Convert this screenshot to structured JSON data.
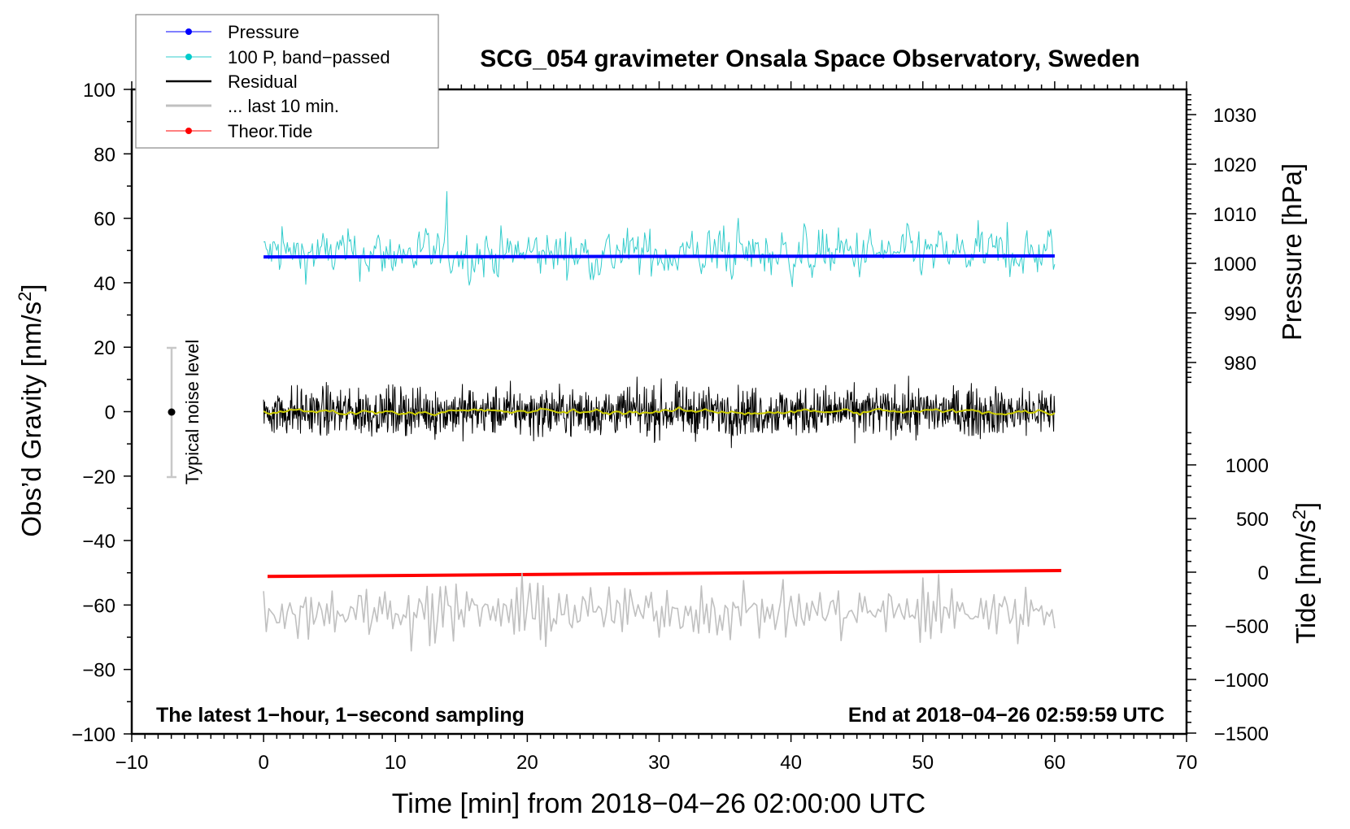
{
  "chart_data": {
    "type": "line",
    "title": "SCG_054 gravimeter Onsala Space Observatory, Sweden",
    "xlabel": "Time [min] from 2018−04−26 02:00:00 UTC",
    "ylabel_left": "Obs’d Gravity [nm/s",
    "ylabel_left_sup": "2",
    "ylabel_left_end": "]",
    "ylabel_right_pressure": "Pressure [hPa]",
    "ylabel_right_tide": "Tide [nm/s",
    "ylabel_right_tide_sup": "2",
    "ylabel_right_tide_end": "]",
    "xlim": [
      -10,
      70
    ],
    "ylim": [
      -100,
      100
    ],
    "pressure_lim": [
      975,
      1035
    ],
    "tide_lim": [
      -1500,
      1300
    ],
    "x_ticks": [
      "−10",
      "0",
      "10",
      "20",
      "30",
      "40",
      "50",
      "60",
      "70"
    ],
    "x_tick_values": [
      -10,
      0,
      10,
      20,
      30,
      40,
      50,
      60,
      70
    ],
    "y_ticks": [
      "100",
      "80",
      "60",
      "40",
      "20",
      "0",
      "−20",
      "−40",
      "−60",
      "−80",
      "−100"
    ],
    "y_tick_values": [
      100,
      80,
      60,
      40,
      20,
      0,
      -20,
      -40,
      -60,
      -80,
      -100
    ],
    "pressure_ticks": [
      "1030",
      "1020",
      "1010",
      "1000",
      "990",
      "980"
    ],
    "pressure_tick_values": [
      1030,
      1020,
      1010,
      1000,
      990,
      980
    ],
    "tide_ticks": [
      "1000",
      "500",
      "0",
      "−500",
      "−1000",
      "−1500"
    ],
    "tide_tick_values": [
      1000,
      500,
      0,
      -500,
      -1000,
      -1500
    ],
    "legend": {
      "placement": "top-left",
      "entries": [
        "Pressure",
        "100 P, band−passed",
        "Residual",
        "... last 10 min.",
        "Theor.Tide"
      ]
    },
    "series": [
      {
        "name": "Pressure",
        "axis": "pressure",
        "color": "#0000ff",
        "x_range": [
          0,
          60
        ],
        "start": 1001.3,
        "end": 1001.5
      },
      {
        "name": "100 P, band−passed",
        "axis": "gravity",
        "color": "#33cccc",
        "x_range": [
          0,
          60
        ],
        "level": 49,
        "amplitude": 4
      },
      {
        "name": "Residual",
        "axis": "gravity",
        "color": "#000000",
        "x_range": [
          0,
          60
        ],
        "level": 0,
        "amplitude": 5
      },
      {
        "name": "Residual smoothed",
        "axis": "gravity",
        "color": "#cccc00",
        "x_range": [
          0,
          60
        ],
        "level": 0,
        "amplitude": 1
      },
      {
        "name": "... last 10 min.",
        "axis": "gravity",
        "color": "#c0c0c0",
        "x_range": [
          0,
          60
        ],
        "level": -62,
        "amplitude": 5
      },
      {
        "name": "Theor.Tide",
        "axis": "tide",
        "color": "#ff0000",
        "x_range": [
          0,
          60
        ],
        "start": -40,
        "end": 15
      }
    ],
    "noise_bar": {
      "label": "Typical noise level",
      "x": -7,
      "center": 0,
      "half_range": 20
    },
    "annotations": {
      "left": "The latest 1−hour, 1−second sampling",
      "right": "End at 2018−04−26 02:59:59 UTC"
    }
  }
}
